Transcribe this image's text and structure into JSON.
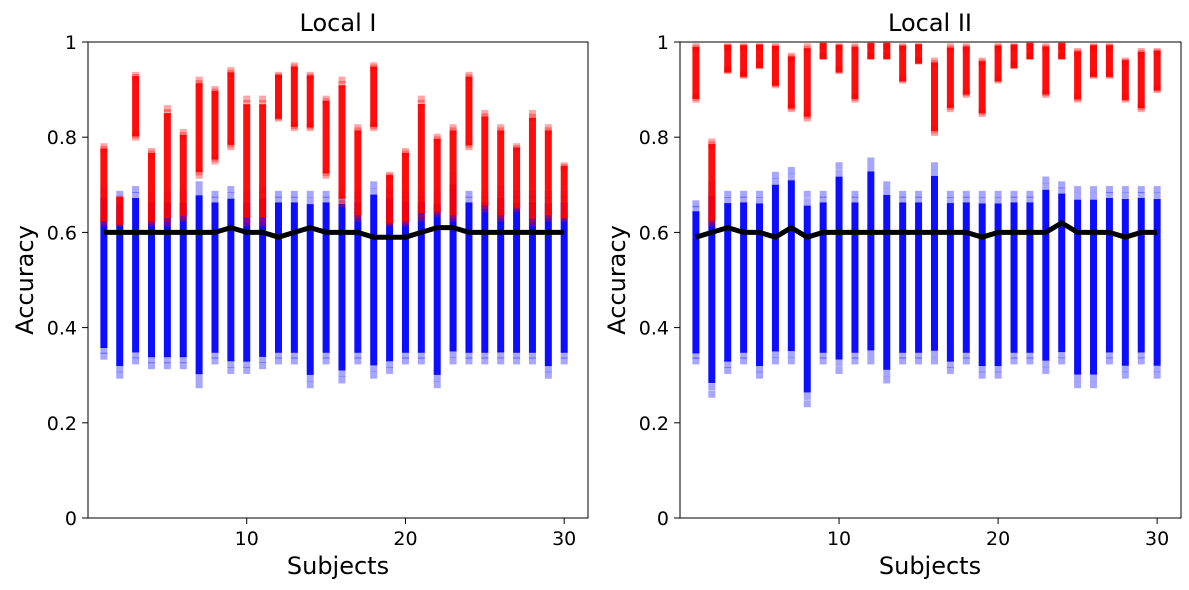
{
  "colors": {
    "null_distribution": "#0000ff",
    "true_accuracy": "#ff0000",
    "chance_line": "#000000"
  },
  "chart_data": [
    {
      "type": "scatter",
      "title": "Local I",
      "xlabel": "Subjects",
      "ylabel": "Accuracy",
      "xlim": [
        0,
        31.5
      ],
      "ylim": [
        0,
        1
      ],
      "xticks": [
        10,
        20,
        30
      ],
      "yticks": [
        0,
        0.2,
        0.4,
        0.6,
        0.8,
        1
      ],
      "ytick_labels": [
        "0",
        "0.2",
        "0.4",
        "0.6",
        "0.8",
        "1"
      ],
      "grid": false,
      "marker": "square",
      "x": [
        1,
        2,
        3,
        4,
        5,
        6,
        7,
        8,
        9,
        10,
        11,
        12,
        13,
        14,
        15,
        16,
        17,
        18,
        19,
        20,
        21,
        22,
        23,
        24,
        25,
        26,
        27,
        28,
        29,
        30
      ],
      "series": [
        {
          "kind": "null-permutation-range",
          "ymin": [
            0.34,
            0.3,
            0.33,
            0.32,
            0.32,
            0.32,
            0.28,
            0.33,
            0.31,
            0.31,
            0.32,
            0.33,
            0.33,
            0.28,
            0.33,
            0.29,
            0.33,
            0.3,
            0.31,
            0.33,
            0.33,
            0.28,
            0.33,
            0.33,
            0.33,
            0.33,
            0.33,
            0.33,
            0.3,
            0.33
          ],
          "ymax": [
            0.69,
            0.68,
            0.69,
            0.68,
            0.68,
            0.68,
            0.7,
            0.68,
            0.69,
            0.68,
            0.69,
            0.68,
            0.68,
            0.68,
            0.68,
            0.68,
            0.68,
            0.7,
            0.69,
            0.68,
            0.68,
            0.68,
            0.72,
            0.68,
            0.68,
            0.69,
            0.68,
            0.68,
            0.68,
            0.68
          ]
        },
        {
          "kind": "true-accuracy-range",
          "ymin": [
            0.62,
            0.62,
            0.8,
            0.62,
            0.62,
            0.63,
            0.72,
            0.75,
            0.78,
            0.62,
            0.62,
            0.84,
            0.82,
            0.82,
            0.72,
            0.66,
            0.63,
            0.82,
            0.62,
            0.62,
            0.63,
            0.64,
            0.63,
            0.78,
            0.65,
            0.63,
            0.65,
            0.62,
            0.63,
            0.63
          ],
          "ymax": [
            0.78,
            0.67,
            0.93,
            0.77,
            0.86,
            0.81,
            0.92,
            0.9,
            0.94,
            0.88,
            0.88,
            0.93,
            0.95,
            0.93,
            0.88,
            0.92,
            0.82,
            0.95,
            0.72,
            0.77,
            0.88,
            0.8,
            0.82,
            0.93,
            0.85,
            0.82,
            0.78,
            0.85,
            0.82,
            0.74
          ]
        },
        {
          "kind": "chance-line",
          "y": [
            0.6,
            0.6,
            0.6,
            0.6,
            0.6,
            0.6,
            0.6,
            0.6,
            0.61,
            0.6,
            0.6,
            0.59,
            0.6,
            0.61,
            0.6,
            0.6,
            0.6,
            0.59,
            0.59,
            0.59,
            0.6,
            0.61,
            0.61,
            0.6,
            0.6,
            0.6,
            0.6,
            0.6,
            0.6,
            0.6
          ]
        }
      ]
    },
    {
      "type": "scatter",
      "title": "Local II",
      "xlabel": "Subjects",
      "ylabel": "Accuracy",
      "xlim": [
        0,
        31.5
      ],
      "ylim": [
        0,
        1
      ],
      "xticks": [
        10,
        20,
        30
      ],
      "yticks": [
        0,
        0.2,
        0.4,
        0.6,
        0.8,
        1
      ],
      "ytick_labels": [
        "0",
        "0.2",
        "0.4",
        "0.6",
        "0.8",
        "1"
      ],
      "grid": false,
      "marker": "square",
      "x": [
        1,
        2,
        3,
        4,
        5,
        6,
        7,
        8,
        9,
        10,
        11,
        12,
        13,
        14,
        15,
        16,
        17,
        18,
        19,
        20,
        21,
        22,
        23,
        24,
        25,
        26,
        27,
        28,
        29,
        30
      ],
      "series": [
        {
          "kind": "null-permutation-range",
          "ymin": [
            0.33,
            0.26,
            0.31,
            0.33,
            0.3,
            0.33,
            0.33,
            0.24,
            0.33,
            0.31,
            0.33,
            0.33,
            0.29,
            0.33,
            0.33,
            0.33,
            0.31,
            0.33,
            0.3,
            0.3,
            0.33,
            0.33,
            0.31,
            0.33,
            0.28,
            0.28,
            0.33,
            0.3,
            0.33,
            0.3
          ],
          "ymax": [
            0.66,
            0.7,
            0.68,
            0.68,
            0.68,
            0.72,
            0.73,
            0.68,
            0.68,
            0.74,
            0.68,
            0.75,
            0.7,
            0.68,
            0.68,
            0.74,
            0.68,
            0.68,
            0.68,
            0.68,
            0.68,
            0.68,
            0.71,
            0.7,
            0.69,
            0.69,
            0.69,
            0.69,
            0.69,
            0.69
          ]
        },
        {
          "kind": "true-accuracy-range",
          "ymin": [
            0.88,
            0.62,
            0.94,
            0.93,
            0.95,
            0.91,
            0.86,
            0.84,
            0.97,
            0.94,
            0.88,
            0.97,
            0.97,
            0.92,
            0.96,
            0.81,
            0.86,
            0.89,
            0.85,
            0.92,
            0.95,
            0.97,
            0.89,
            0.97,
            0.88,
            0.93,
            0.93,
            0.88,
            0.86,
            0.9
          ],
          "ymax": [
            0.99,
            0.79,
            0.99,
            0.99,
            0.99,
            0.99,
            0.97,
            0.99,
            1.0,
            0.99,
            0.99,
            1.0,
            1.0,
            0.99,
            0.99,
            0.96,
            0.99,
            0.99,
            0.96,
            0.99,
            0.99,
            1.0,
            0.99,
            1.0,
            0.98,
            0.99,
            0.99,
            0.96,
            0.98,
            0.98
          ]
        },
        {
          "kind": "chance-line",
          "y": [
            0.59,
            0.6,
            0.61,
            0.6,
            0.6,
            0.59,
            0.61,
            0.59,
            0.6,
            0.6,
            0.6,
            0.6,
            0.6,
            0.6,
            0.6,
            0.6,
            0.6,
            0.6,
            0.59,
            0.6,
            0.6,
            0.6,
            0.6,
            0.62,
            0.6,
            0.6,
            0.6,
            0.59,
            0.6,
            0.6
          ]
        }
      ]
    }
  ]
}
